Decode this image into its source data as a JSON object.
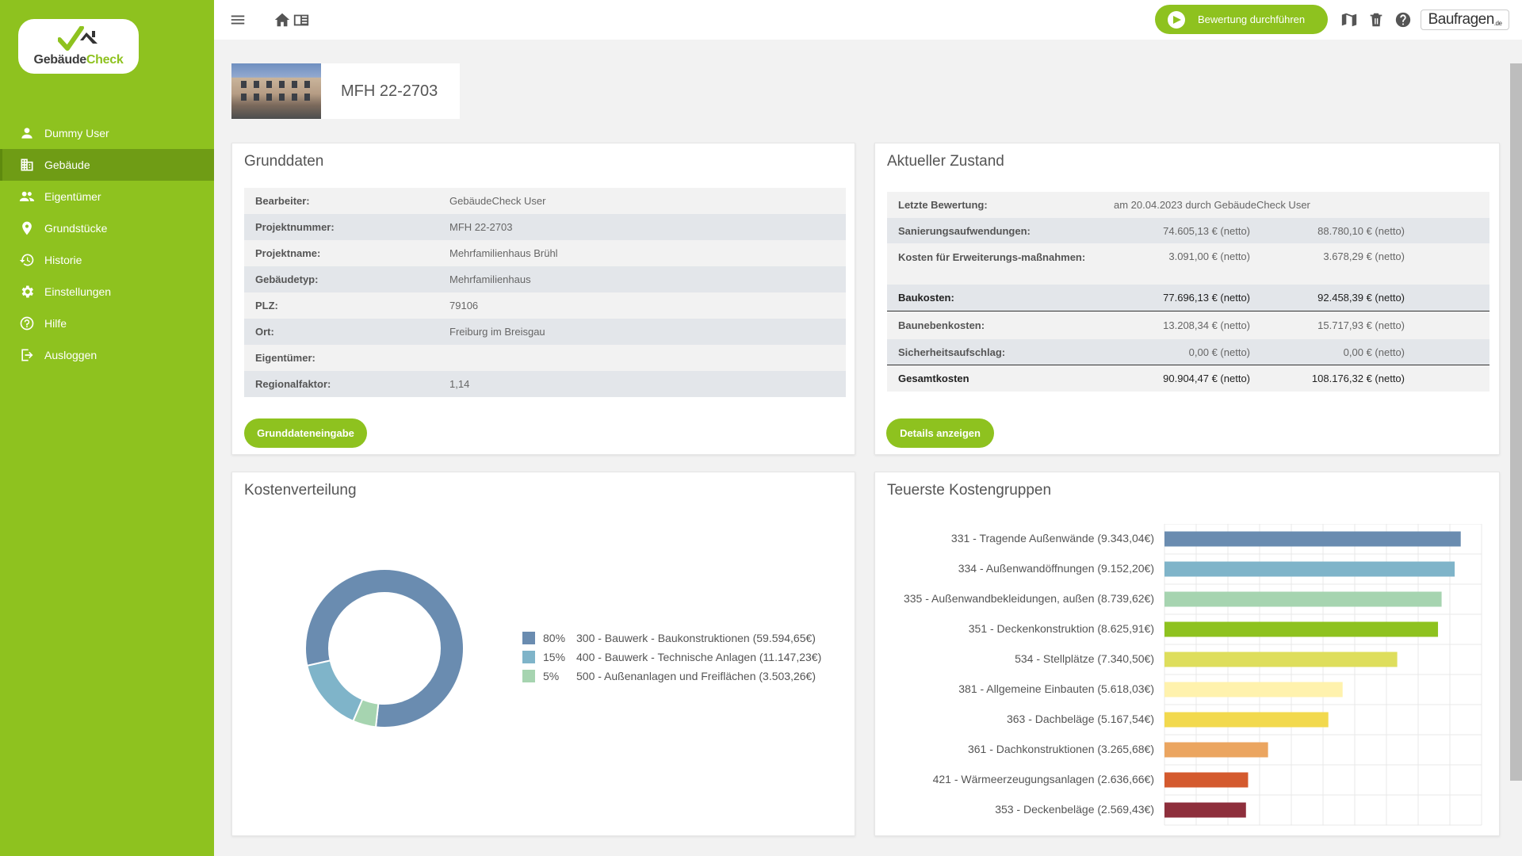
{
  "sidebar": {
    "logo_text_a": "Gebäude",
    "logo_text_b": "Check",
    "items": [
      {
        "label": "Dummy User",
        "icon": "user-icon"
      },
      {
        "label": "Gebäude",
        "icon": "building-icon",
        "active": true
      },
      {
        "label": "Eigentümer",
        "icon": "people-icon"
      },
      {
        "label": "Grundstücke",
        "icon": "map-pin-icon"
      },
      {
        "label": "Historie",
        "icon": "history-icon"
      },
      {
        "label": "Einstellungen",
        "icon": "gear-icon"
      },
      {
        "label": "Hilfe",
        "icon": "help-icon"
      },
      {
        "label": "Ausloggen",
        "icon": "logout-icon"
      }
    ]
  },
  "topbar": {
    "evaluate_label": "Bewertung durchführen",
    "brand": "Baufragen",
    "brand_suffix": ".de"
  },
  "building": {
    "title": "MFH 22-2703"
  },
  "grunddaten": {
    "title": "Grunddaten",
    "rows": [
      {
        "label": "Bearbeiter:",
        "value": "GebäudeCheck User"
      },
      {
        "label": "Projektnummer:",
        "value": "MFH 22-2703"
      },
      {
        "label": "Projektname:",
        "value": "Mehrfamilienhaus Brühl"
      },
      {
        "label": "Gebäudetyp:",
        "value": "Mehrfamilienhaus"
      },
      {
        "label": "PLZ:",
        "value": "79106"
      },
      {
        "label": "Ort:",
        "value": "Freiburg im Breisgau"
      },
      {
        "label": "Eigentümer:",
        "value": ""
      },
      {
        "label": "Regionalfaktor:",
        "value": "1,14"
      }
    ],
    "button_label": "Grunddateneingabe"
  },
  "zustand": {
    "title": "Aktueller Zustand",
    "last_eval_label": "Letzte Bewertung:",
    "last_eval_value": "am 20.04.2023 durch GebäudeCheck User",
    "rows": [
      {
        "label": "Sanierungsaufwendungen:",
        "v1": "74.605,13 € (netto)",
        "v2": "88.780,10 € (netto)"
      },
      {
        "label": "Kosten für Erweiterungs-maßnahmen:",
        "v1": "3.091,00 € (netto)",
        "v2": "3.678,29 € (netto)"
      },
      {
        "label": "Baukosten:",
        "v1": "77.696,13 € (netto)",
        "v2": "92.458,39 € (netto)"
      },
      {
        "label": "Baunebenkosten:",
        "v1": "13.208,34 € (netto)",
        "v2": "15.717,93 € (netto)"
      },
      {
        "label": "Sicherheitsaufschlag:",
        "v1": "0,00 € (netto)",
        "v2": "0,00 € (netto)"
      },
      {
        "label": "Gesamtkosten",
        "v1": "90.904,47 € (netto)",
        "v2": "108.176,32 € (netto)"
      }
    ],
    "button_label": "Details anzeigen"
  },
  "kostenverteilung": {
    "title": "Kostenverteilung",
    "chart_data": {
      "type": "pie",
      "title": "",
      "categories": [
        "300 - Bauwerk - Baukonstruktionen (59.594,65€)",
        "400 - Bauwerk - Technische Anlagen (11.147,23€)",
        "500 - Außenanlagen und Freiflächen (3.503,26€)"
      ],
      "percent_labels": [
        "80%",
        "15%",
        "5%"
      ],
      "values": [
        59594.65,
        11147.23,
        3503.26
      ],
      "colors": [
        "#6a8cb0",
        "#7fb4c9",
        "#a6d4b0"
      ]
    }
  },
  "teuerste": {
    "title": "Teuerste Kostengruppen",
    "chart_data": {
      "type": "bar",
      "orientation": "horizontal",
      "title": "",
      "categories": [
        "331 - Tragende Außenwände (9.343,04€)",
        "334 - Außenwandöffnungen (9.152,20€)",
        "335 - Außenwandbekleidungen, außen (8.739,62€)",
        "351 - Deckenkonstruktion (8.625,91€)",
        "534 - Stellplätze (7.340,50€)",
        "381 - Allgemeine Einbauten (5.618,03€)",
        "363 - Dachbeläge (5.167,54€)",
        "361 - Dachkonstruktionen (3.265,68€)",
        "421 - Wärmeerzeugungsanlagen (2.636,66€)",
        "353 - Deckenbeläge (2.569,43€)"
      ],
      "values": [
        9343.04,
        9152.2,
        8739.62,
        8625.91,
        7340.5,
        5618.03,
        5167.54,
        3265.68,
        2636.66,
        2569.43
      ],
      "colors": [
        "#6a8cb0",
        "#7fb4c9",
        "#a6d4b0",
        "#8ec21f",
        "#dede5c",
        "#fff2ad",
        "#f2d94e",
        "#eba560",
        "#d45a2e",
        "#8e2f3c"
      ],
      "xlim": [
        0,
        10000
      ],
      "grid": true
    }
  }
}
